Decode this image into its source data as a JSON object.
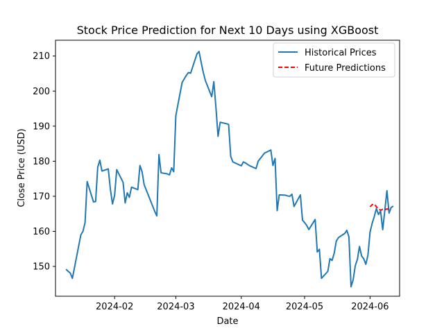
{
  "chart_data": {
    "type": "line",
    "title": "Stock Price Prediction for Next 10 Days using XGBoost",
    "xlabel": "Date",
    "ylabel": "Close Price (USD)",
    "xlim": [
      "2024-01-04",
      "2024-06-15"
    ],
    "ylim": [
      141.5,
      214.5
    ],
    "x_ticks": [
      "2024-02",
      "2024-03",
      "2024-04",
      "2024-05",
      "2024-06"
    ],
    "y_ticks": [
      150,
      160,
      170,
      180,
      190,
      200,
      210
    ],
    "grid": false,
    "legend_position": "top-right",
    "colors": {
      "historical": "#1f77b4",
      "predictions": "#ff0000"
    },
    "series": [
      {
        "name": "Historical Prices",
        "style": "solid",
        "points": [
          [
            "2024-01-09",
            149.2
          ],
          [
            "2024-01-10",
            148.6
          ],
          [
            "2024-01-11",
            148.1
          ],
          [
            "2024-01-12",
            146.6
          ],
          [
            "2024-01-16",
            159.0
          ],
          [
            "2024-01-17",
            160.0
          ],
          [
            "2024-01-18",
            162.5
          ],
          [
            "2024-01-19",
            174.2
          ],
          [
            "2024-01-22",
            168.4
          ],
          [
            "2024-01-23",
            168.5
          ],
          [
            "2024-01-24",
            178.3
          ],
          [
            "2024-01-25",
            180.3
          ],
          [
            "2024-01-26",
            177.2
          ],
          [
            "2024-01-29",
            177.8
          ],
          [
            "2024-01-30",
            172.0
          ],
          [
            "2024-01-31",
            167.8
          ],
          [
            "2024-02-01",
            170.3
          ],
          [
            "2024-02-02",
            177.6
          ],
          [
            "2024-02-05",
            174.0
          ],
          [
            "2024-02-06",
            168.1
          ],
          [
            "2024-02-07",
            171.0
          ],
          [
            "2024-02-08",
            169.7
          ],
          [
            "2024-02-09",
            172.6
          ],
          [
            "2024-02-12",
            171.9
          ],
          [
            "2024-02-13",
            178.8
          ],
          [
            "2024-02-14",
            177.0
          ],
          [
            "2024-02-15",
            173.3
          ],
          [
            "2024-02-20",
            165.7
          ],
          [
            "2024-02-21",
            164.4
          ],
          [
            "2024-02-22",
            181.9
          ],
          [
            "2024-02-23",
            176.7
          ],
          [
            "2024-02-26",
            176.4
          ],
          [
            "2024-02-27",
            176.1
          ],
          [
            "2024-02-28",
            178.1
          ],
          [
            "2024-02-29",
            177.0
          ],
          [
            "2024-03-01",
            193.0
          ],
          [
            "2024-03-04",
            202.5
          ],
          [
            "2024-03-05",
            203.5
          ],
          [
            "2024-03-06",
            204.5
          ],
          [
            "2024-03-07",
            205.3
          ],
          [
            "2024-03-08",
            205.1
          ],
          [
            "2024-03-11",
            210.6
          ],
          [
            "2024-03-12",
            211.3
          ],
          [
            "2024-03-13",
            208.2
          ],
          [
            "2024-03-14",
            205.3
          ],
          [
            "2024-03-15",
            203.0
          ],
          [
            "2024-03-18",
            198.4
          ],
          [
            "2024-03-19",
            202.7
          ],
          [
            "2024-03-20",
            195.3
          ],
          [
            "2024-03-21",
            187.1
          ],
          [
            "2024-03-22",
            191.1
          ],
          [
            "2024-03-25",
            190.7
          ],
          [
            "2024-03-26",
            190.5
          ],
          [
            "2024-03-27",
            181.4
          ],
          [
            "2024-03-28",
            179.8
          ],
          [
            "2024-04-01",
            178.7
          ],
          [
            "2024-04-02",
            179.8
          ],
          [
            "2024-04-03",
            179.5
          ],
          [
            "2024-04-05",
            178.7
          ],
          [
            "2024-04-08",
            177.9
          ],
          [
            "2024-04-09",
            180.0
          ],
          [
            "2024-04-12",
            182.3
          ],
          [
            "2024-04-15",
            183.2
          ],
          [
            "2024-04-16",
            178.8
          ],
          [
            "2024-04-17",
            180.8
          ],
          [
            "2024-04-18",
            165.9
          ],
          [
            "2024-04-19",
            170.4
          ],
          [
            "2024-04-22",
            170.3
          ],
          [
            "2024-04-23",
            170.1
          ],
          [
            "2024-04-24",
            170.0
          ],
          [
            "2024-04-25",
            170.6
          ],
          [
            "2024-04-26",
            167.1
          ],
          [
            "2024-04-29",
            170.4
          ],
          [
            "2024-04-30",
            163.2
          ],
          [
            "2024-05-01",
            162.5
          ],
          [
            "2024-05-02",
            161.7
          ],
          [
            "2024-05-03",
            160.5
          ],
          [
            "2024-05-06",
            163.4
          ],
          [
            "2024-05-07",
            154.1
          ],
          [
            "2024-05-08",
            154.9
          ],
          [
            "2024-05-09",
            146.6
          ],
          [
            "2024-05-12",
            148.6
          ],
          [
            "2024-05-13",
            152.2
          ],
          [
            "2024-05-14",
            151.7
          ],
          [
            "2024-05-15",
            153.7
          ],
          [
            "2024-05-16",
            157.2
          ],
          [
            "2024-05-17",
            158.2
          ],
          [
            "2024-05-20",
            159.4
          ],
          [
            "2024-05-21",
            160.3
          ],
          [
            "2024-05-22",
            158.4
          ],
          [
            "2024-05-23",
            144.2
          ],
          [
            "2024-05-24",
            146.2
          ],
          [
            "2024-05-25",
            150.2
          ],
          [
            "2024-05-26",
            152.0
          ],
          [
            "2024-05-27",
            155.7
          ],
          [
            "2024-05-28",
            153.0
          ],
          [
            "2024-05-29",
            152.2
          ],
          [
            "2024-05-30",
            150.6
          ],
          [
            "2024-05-31",
            153.2
          ],
          [
            "2024-06-01",
            159.8
          ],
          [
            "2024-06-02",
            162.3
          ],
          [
            "2024-06-03",
            164.2
          ],
          [
            "2024-06-04",
            166.5
          ],
          [
            "2024-06-05",
            164.8
          ],
          [
            "2024-06-06",
            165.8
          ],
          [
            "2024-06-07",
            160.5
          ],
          [
            "2024-06-08",
            166.0
          ],
          [
            "2024-06-09",
            171.6
          ],
          [
            "2024-06-10",
            165.2
          ],
          [
            "2024-06-11",
            166.8
          ],
          [
            "2024-06-12",
            167.2
          ]
        ]
      },
      {
        "name": "Future Predictions",
        "style": "dashed",
        "points": [
          [
            "2024-06-01",
            167.0
          ],
          [
            "2024-06-02",
            167.6
          ],
          [
            "2024-06-03",
            167.8
          ],
          [
            "2024-06-04",
            167.0
          ],
          [
            "2024-06-05",
            166.5
          ],
          [
            "2024-06-06",
            166.0
          ],
          [
            "2024-06-07",
            166.3
          ],
          [
            "2024-06-08",
            166.2
          ],
          [
            "2024-06-09",
            166.4
          ],
          [
            "2024-06-10",
            166.3
          ]
        ]
      }
    ]
  }
}
